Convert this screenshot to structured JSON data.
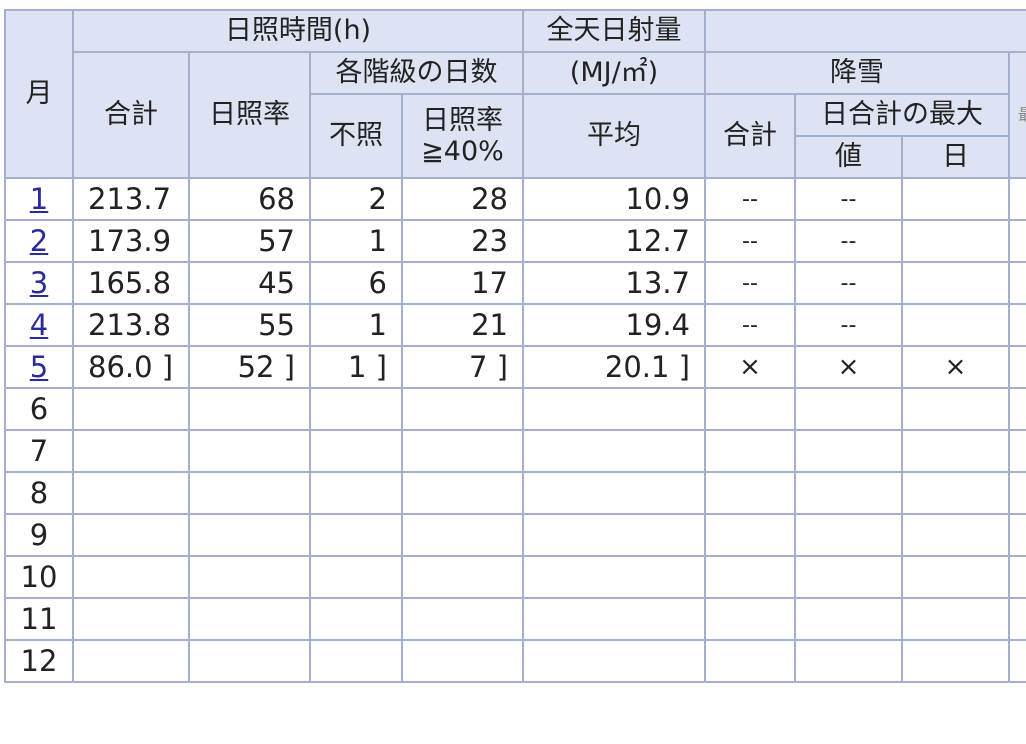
{
  "headers": {
    "month": "月",
    "sunshine_group": "日照時間(h)",
    "total": "合計",
    "sunshine_rate": "日照率",
    "class_days": "各階級の日数",
    "no_sun": "不照",
    "rate_ge40": "日照率≧40%",
    "radiation_line1": "全天日射量",
    "radiation_line2": "(MJ/㎡)",
    "average": "平均",
    "snowfall": "降雪",
    "snow_total": "合計",
    "daily_max": "日合計の最大",
    "value": "値",
    "day": "日",
    "cut_partial": "最"
  },
  "rows": [
    {
      "month": "1",
      "link": true,
      "total": "213.7",
      "rate": "68",
      "no_sun": "2",
      "ge40": "28",
      "rad": "10.9",
      "snow_total": "--",
      "snow_val": "--",
      "snow_day": ""
    },
    {
      "month": "2",
      "link": true,
      "total": "173.9",
      "rate": "57",
      "no_sun": "1",
      "ge40": "23",
      "rad": "12.7",
      "snow_total": "--",
      "snow_val": "--",
      "snow_day": ""
    },
    {
      "month": "3",
      "link": true,
      "total": "165.8",
      "rate": "45",
      "no_sun": "6",
      "ge40": "17",
      "rad": "13.7",
      "snow_total": "--",
      "snow_val": "--",
      "snow_day": ""
    },
    {
      "month": "4",
      "link": true,
      "total": "213.8",
      "rate": "55",
      "no_sun": "1",
      "ge40": "21",
      "rad": "19.4",
      "snow_total": "--",
      "snow_val": "--",
      "snow_day": ""
    },
    {
      "month": "5",
      "link": true,
      "total": "86.0 ]",
      "rate": "52 ]",
      "no_sun": "1 ]",
      "ge40": "7 ]",
      "rad": "20.1 ]",
      "snow_total": "×",
      "snow_val": "×",
      "snow_day": "×"
    },
    {
      "month": "6",
      "link": false,
      "total": "",
      "rate": "",
      "no_sun": "",
      "ge40": "",
      "rad": "",
      "snow_total": "",
      "snow_val": "",
      "snow_day": ""
    },
    {
      "month": "7",
      "link": false,
      "total": "",
      "rate": "",
      "no_sun": "",
      "ge40": "",
      "rad": "",
      "snow_total": "",
      "snow_val": "",
      "snow_day": ""
    },
    {
      "month": "8",
      "link": false,
      "total": "",
      "rate": "",
      "no_sun": "",
      "ge40": "",
      "rad": "",
      "snow_total": "",
      "snow_val": "",
      "snow_day": ""
    },
    {
      "month": "9",
      "link": false,
      "total": "",
      "rate": "",
      "no_sun": "",
      "ge40": "",
      "rad": "",
      "snow_total": "",
      "snow_val": "",
      "snow_day": ""
    },
    {
      "month": "10",
      "link": false,
      "total": "",
      "rate": "",
      "no_sun": "",
      "ge40": "",
      "rad": "",
      "snow_total": "",
      "snow_val": "",
      "snow_day": ""
    },
    {
      "month": "11",
      "link": false,
      "total": "",
      "rate": "",
      "no_sun": "",
      "ge40": "",
      "rad": "",
      "snow_total": "",
      "snow_val": "",
      "snow_day": ""
    },
    {
      "month": "12",
      "link": false,
      "total": "",
      "rate": "",
      "no_sun": "",
      "ge40": "",
      "rad": "",
      "snow_total": "",
      "snow_val": "",
      "snow_day": ""
    }
  ],
  "colors": {
    "header_bg": "#dde3f2",
    "border": "#a4aecd",
    "link": "#2a2a9c"
  }
}
